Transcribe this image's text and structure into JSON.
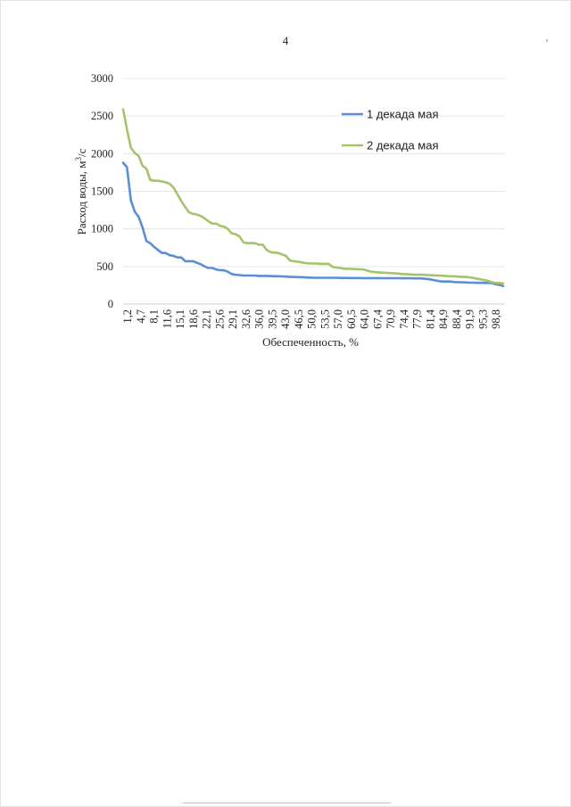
{
  "page": {
    "number": "4"
  },
  "chart_data": {
    "type": "line",
    "xlabel": "Обеспеченность, %",
    "ylabel": "Расход воды, м³/с",
    "ylabel_parts": {
      "text": "Расход воды, м",
      "sup": "3",
      "suffix": "/с"
    },
    "ylim": [
      0,
      3000
    ],
    "yticks": [
      0,
      500,
      1000,
      1500,
      2000,
      2500,
      3000
    ],
    "x_tick_labels": [
      "1,2",
      "4,7",
      "8,1",
      "11,6",
      "15,1",
      "18,6",
      "22,1",
      "25,6",
      "29,1",
      "32,6",
      "36,0",
      "39,5",
      "43,0",
      "46,5",
      "50,0",
      "53,5",
      "57,0",
      "60,5",
      "64,0",
      "67,4",
      "70,9",
      "74,4",
      "77,9",
      "81,4",
      "84,9",
      "88,4",
      "91,9",
      "95,3",
      "98,8"
    ],
    "grid": "horizontal",
    "legend_position": "top-right",
    "series": [
      {
        "name": "1 декада мая",
        "color": "#5b8ed6",
        "values": [
          1880,
          1820,
          1380,
          1230,
          1160,
          1020,
          840,
          810,
          760,
          720,
          680,
          680,
          650,
          640,
          620,
          620,
          570,
          570,
          570,
          550,
          530,
          500,
          480,
          480,
          460,
          450,
          450,
          430,
          400,
          390,
          385,
          380,
          380,
          380,
          380,
          375,
          375,
          375,
          372,
          370,
          370,
          368,
          365,
          360,
          360,
          358,
          358,
          355,
          352,
          350,
          350,
          350,
          350,
          350,
          350,
          350,
          348,
          348,
          348,
          346,
          346,
          346,
          345,
          345,
          345,
          345,
          345,
          344,
          344,
          344,
          344,
          344,
          343,
          343,
          343,
          342,
          342,
          340,
          335,
          330,
          320,
          310,
          300,
          300,
          300,
          295,
          290,
          290,
          288,
          286,
          284,
          283,
          282,
          282,
          281,
          280,
          265,
          255,
          240
        ]
      },
      {
        "name": "2 декада мая",
        "color": "#a4c36b",
        "values": [
          2590,
          2320,
          2080,
          2010,
          1970,
          1840,
          1800,
          1650,
          1640,
          1640,
          1630,
          1620,
          1600,
          1550,
          1460,
          1370,
          1290,
          1220,
          1200,
          1190,
          1170,
          1140,
          1100,
          1070,
          1070,
          1040,
          1030,
          1000,
          940,
          930,
          900,
          820,
          810,
          810,
          810,
          790,
          790,
          720,
          690,
          685,
          680,
          660,
          640,
          580,
          570,
          565,
          555,
          545,
          540,
          540,
          538,
          535,
          535,
          535,
          495,
          485,
          480,
          470,
          470,
          468,
          465,
          462,
          460,
          445,
          430,
          425,
          420,
          418,
          415,
          412,
          410,
          405,
          400,
          398,
          395,
          390,
          390,
          390,
          388,
          385,
          382,
          380,
          378,
          375,
          370,
          370,
          366,
          363,
          360,
          358,
          350,
          340,
          330,
          320,
          310,
          290,
          282,
          280,
          275
        ]
      }
    ]
  }
}
